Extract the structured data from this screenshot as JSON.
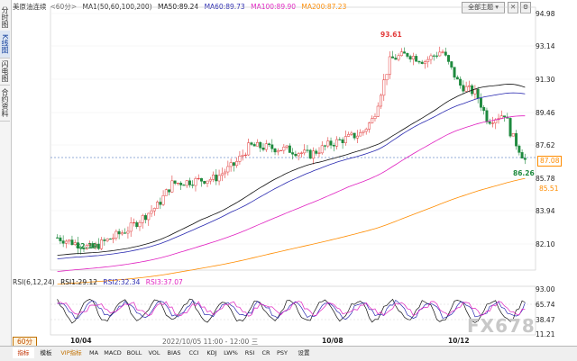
{
  "sidebar": {
    "tabs": [
      "分时图",
      "K线图",
      "闪电图",
      "合约资料"
    ],
    "active": 1
  },
  "header": {
    "instrument": "美原油连续",
    "period_tag": "<60分>",
    "ma_params": "MA1(50,60,100,200)",
    "ma50": "MA50:89.24",
    "ma60": "MA60:89.73",
    "ma100": "MA100:89.90",
    "ma200": "MA200:87.23",
    "theme_button": "全部主题 ▾"
  },
  "colors": {
    "up": "#e23a3a",
    "down": "#1e8a3e",
    "ma50": "#111111",
    "ma60": "#2a2ab0",
    "ma100": "#e020c0",
    "ma200": "#ff8c00",
    "rsi6": "#111111",
    "rsi12": "#2a2ab0",
    "rsi24": "#e020c0",
    "last_price": "#ff8c00"
  },
  "price_axis": [
    "94.98",
    "93.14",
    "91.30",
    "89.46",
    "87.62",
    "85.78",
    "83.94",
    "82.10"
  ],
  "price_tags": {
    "last": "87.08",
    "ma200": "85.51"
  },
  "annotations": {
    "high": "93.61",
    "low": "86.26",
    "start_low": "82.19"
  },
  "rsi": {
    "header": "RSI(6,12,24)",
    "rsi1": "RSI1:29.12",
    "rsi2": "RSI2:32.34",
    "rsi3": "RSI3:37.07",
    "axis": [
      "93.00",
      "65.74",
      "38.47",
      "11.21"
    ]
  },
  "x_axis": {
    "labels": [
      "10/04",
      "10/08",
      "10/12"
    ],
    "timespan": "2022/10/05 11:00 - 12:00 三"
  },
  "period_button": "60分",
  "toolbar": [
    "指标",
    "模板",
    "VIP指标",
    "MA",
    "MACD",
    "BOLL",
    "VOL",
    "BIAS",
    "CCI",
    "KDJ",
    "LW%",
    "RSI",
    "CR",
    "PSY",
    "设置"
  ],
  "watermark": "FX678"
}
